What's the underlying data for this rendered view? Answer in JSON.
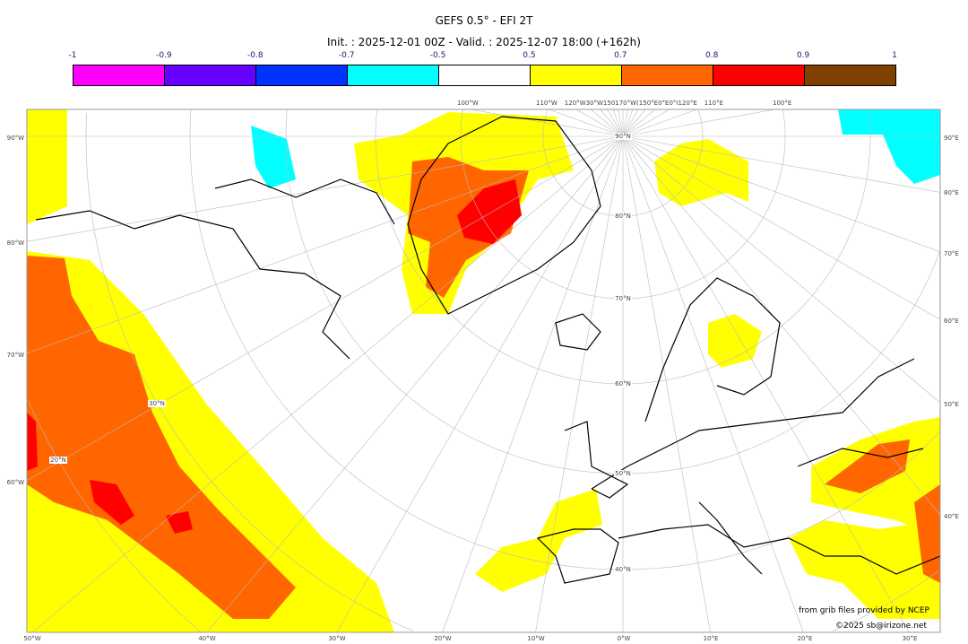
{
  "header": {
    "title": "GEFS 0.5° - EFI 2T",
    "subtitle": "Init. : 2025-12-01 00Z - Valid. : 2025-12-07 18:00 (+162h)"
  },
  "colorbar": {
    "ticks": [
      "-1",
      "-0.9",
      "-0.8",
      "-0.7",
      "-0.5",
      "0.5",
      "0.7",
      "0.8",
      "0.9",
      "1"
    ],
    "colors": [
      "#ff00ff",
      "#6600ff",
      "#0033ff",
      "#00ffff",
      "#ffffff",
      "#ffff00",
      "#ff6600",
      "#ff0000",
      "#804000"
    ]
  },
  "map": {
    "left_labels": [
      "90°W",
      "80°W",
      "70°W",
      "60°W"
    ],
    "right_labels": [
      "90°E",
      "80°E",
      "70°E",
      "60°E",
      "50°E",
      "40°E"
    ],
    "bottom_labels": [
      "50°W",
      "40°W",
      "30°W",
      "20°W",
      "10°W",
      "0°W",
      "10°E",
      "20°E",
      "30°E"
    ],
    "top_labels": [
      "100°W",
      "110°W",
      "120°W30°W150170°W(150°E0°E0°I120°E",
      "110°E",
      "100°E"
    ],
    "lat_labels": [
      "90°N",
      "80°N",
      "70°N",
      "60°N",
      "50°N",
      "40°N",
      "30°N",
      "20°N"
    ]
  },
  "credits": {
    "source": "from grib files provided by NCEP",
    "copyright": "©2025 sb@irizone.net"
  }
}
